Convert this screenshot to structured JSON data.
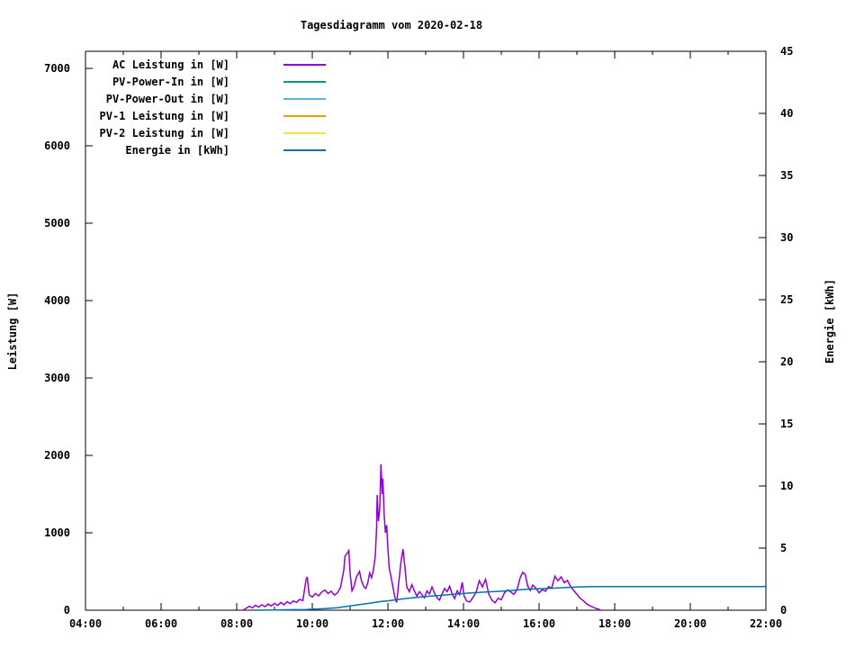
{
  "chart_data": {
    "type": "line",
    "title": "Tagesdiagramm vom 2020-02-18",
    "x_axis": {
      "range_minutes": [
        240,
        1320
      ],
      "major_ticks": [
        {
          "t": 240,
          "label": "04:00"
        },
        {
          "t": 360,
          "label": "06:00"
        },
        {
          "t": 480,
          "label": "08:00"
        },
        {
          "t": 600,
          "label": "10:00"
        },
        {
          "t": 720,
          "label": "12:00"
        },
        {
          "t": 840,
          "label": "14:00"
        },
        {
          "t": 960,
          "label": "16:00"
        },
        {
          "t": 1080,
          "label": "18:00"
        },
        {
          "t": 1200,
          "label": "20:00"
        },
        {
          "t": 1320,
          "label": "22:00"
        }
      ],
      "minor_tick_minutes": [
        300,
        420,
        540,
        660,
        780,
        900,
        1020,
        1140,
        1260
      ]
    },
    "y_left": {
      "label": "Leistung [W]",
      "range": [
        0,
        7221
      ],
      "ticks": [
        0,
        1000,
        2000,
        3000,
        4000,
        5000,
        6000,
        7000
      ]
    },
    "y_right": {
      "label": "Energie [kWh]",
      "range": [
        0,
        45
      ],
      "ticks": [
        0,
        5,
        10,
        15,
        20,
        25,
        30,
        35,
        40,
        45
      ]
    },
    "legend_position": "top-left-inside",
    "grid": false,
    "legend": [
      {
        "label": "AC Leistung in [W]",
        "color": "#9400d3",
        "series_key": "ac_leistung"
      },
      {
        "label": "PV-Power-In in [W]",
        "color": "#009e73",
        "series_key": "pv_power_in"
      },
      {
        "label": "PV-Power-Out in [W]",
        "color": "#56b4e9",
        "series_key": "pv_power_out"
      },
      {
        "label": "PV-1 Leistung in [W]",
        "color": "#e69f00",
        "series_key": "pv1_leistung"
      },
      {
        "label": "PV-2 Leistung in [W]",
        "color": "#f0e442",
        "series_key": "pv2_leistung"
      },
      {
        "label": "Energie in [kWh]",
        "color": "#0072b2",
        "series_key": "energie"
      }
    ],
    "series": {
      "ac_leistung": {
        "axis": "left",
        "color": "#9400d3",
        "peak_watts": 1886,
        "peak_time": "11:49",
        "points": [
          [
            490,
            0
          ],
          [
            495,
            25
          ],
          [
            500,
            50
          ],
          [
            505,
            30
          ],
          [
            510,
            65
          ],
          [
            515,
            40
          ],
          [
            520,
            70
          ],
          [
            525,
            45
          ],
          [
            530,
            80
          ],
          [
            535,
            55
          ],
          [
            540,
            90
          ],
          [
            545,
            60
          ],
          [
            550,
            100
          ],
          [
            555,
            70
          ],
          [
            560,
            110
          ],
          [
            565,
            85
          ],
          [
            570,
            120
          ],
          [
            575,
            100
          ],
          [
            580,
            140
          ],
          [
            585,
            125
          ],
          [
            590,
            390
          ],
          [
            592,
            430
          ],
          [
            595,
            200
          ],
          [
            600,
            170
          ],
          [
            605,
            215
          ],
          [
            610,
            185
          ],
          [
            615,
            235
          ],
          [
            620,
            260
          ],
          [
            625,
            215
          ],
          [
            630,
            245
          ],
          [
            635,
            195
          ],
          [
            640,
            225
          ],
          [
            645,
            300
          ],
          [
            650,
            520
          ],
          [
            652,
            700
          ],
          [
            655,
            730
          ],
          [
            658,
            770
          ],
          [
            660,
            480
          ],
          [
            663,
            250
          ],
          [
            666,
            300
          ],
          [
            670,
            430
          ],
          [
            675,
            500
          ],
          [
            678,
            380
          ],
          [
            682,
            300
          ],
          [
            685,
            280
          ],
          [
            688,
            350
          ],
          [
            691,
            480
          ],
          [
            694,
            420
          ],
          [
            697,
            520
          ],
          [
            700,
            700
          ],
          [
            702,
            1050
          ],
          [
            703,
            1490
          ],
          [
            705,
            1150
          ],
          [
            707,
            1300
          ],
          [
            709,
            1886
          ],
          [
            711,
            1500
          ],
          [
            712,
            1700
          ],
          [
            714,
            1250
          ],
          [
            716,
            1000
          ],
          [
            718,
            1100
          ],
          [
            720,
            800
          ],
          [
            722,
            550
          ],
          [
            725,
            430
          ],
          [
            728,
            300
          ],
          [
            731,
            170
          ],
          [
            734,
            100
          ],
          [
            738,
            420
          ],
          [
            741,
            640
          ],
          [
            744,
            790
          ],
          [
            747,
            560
          ],
          [
            750,
            300
          ],
          [
            754,
            240
          ],
          [
            758,
            330
          ],
          [
            762,
            250
          ],
          [
            766,
            180
          ],
          [
            770,
            240
          ],
          [
            774,
            200
          ],
          [
            778,
            160
          ],
          [
            782,
            250
          ],
          [
            786,
            210
          ],
          [
            790,
            300
          ],
          [
            794,
            220
          ],
          [
            798,
            160
          ],
          [
            802,
            130
          ],
          [
            806,
            210
          ],
          [
            810,
            280
          ],
          [
            814,
            240
          ],
          [
            818,
            310
          ],
          [
            822,
            210
          ],
          [
            826,
            150
          ],
          [
            830,
            250
          ],
          [
            834,
            200
          ],
          [
            838,
            360
          ],
          [
            841,
            180
          ],
          [
            845,
            120
          ],
          [
            850,
            105
          ],
          [
            855,
            165
          ],
          [
            860,
            230
          ],
          [
            865,
            380
          ],
          [
            870,
            300
          ],
          [
            875,
            400
          ],
          [
            880,
            210
          ],
          [
            885,
            130
          ],
          [
            890,
            95
          ],
          [
            895,
            155
          ],
          [
            900,
            135
          ],
          [
            905,
            225
          ],
          [
            910,
            260
          ],
          [
            915,
            235
          ],
          [
            920,
            205
          ],
          [
            925,
            265
          ],
          [
            930,
            420
          ],
          [
            934,
            490
          ],
          [
            938,
            460
          ],
          [
            942,
            310
          ],
          [
            946,
            255
          ],
          [
            950,
            325
          ],
          [
            955,
            285
          ],
          [
            960,
            225
          ],
          [
            965,
            265
          ],
          [
            970,
            245
          ],
          [
            975,
            305
          ],
          [
            980,
            285
          ],
          [
            985,
            440
          ],
          [
            990,
            380
          ],
          [
            995,
            430
          ],
          [
            1000,
            355
          ],
          [
            1005,
            385
          ],
          [
            1010,
            305
          ],
          [
            1015,
            255
          ],
          [
            1020,
            205
          ],
          [
            1025,
            155
          ],
          [
            1030,
            125
          ],
          [
            1035,
            85
          ],
          [
            1040,
            60
          ],
          [
            1045,
            40
          ],
          [
            1050,
            25
          ],
          [
            1055,
            10
          ],
          [
            1058,
            0
          ]
        ]
      },
      "pv_power_in": {
        "axis": "left",
        "color": "#009e73",
        "points": []
      },
      "pv_power_out": {
        "axis": "left",
        "color": "#56b4e9",
        "points": []
      },
      "pv1_leistung": {
        "axis": "left",
        "color": "#e69f00",
        "points": []
      },
      "pv2_leistung": {
        "axis": "left",
        "color": "#f0e442",
        "points": []
      },
      "energie": {
        "axis": "right",
        "color": "#0072b2",
        "final_kwh": 1.9,
        "points": [
          [
            510,
            0
          ],
          [
            540,
            0.02
          ],
          [
            570,
            0.04
          ],
          [
            590,
            0.06
          ],
          [
            600,
            0.08
          ],
          [
            620,
            0.12
          ],
          [
            640,
            0.2
          ],
          [
            660,
            0.35
          ],
          [
            675,
            0.45
          ],
          [
            690,
            0.55
          ],
          [
            700,
            0.63
          ],
          [
            710,
            0.7
          ],
          [
            720,
            0.75
          ],
          [
            735,
            0.85
          ],
          [
            750,
            0.95
          ],
          [
            765,
            1.02
          ],
          [
            780,
            1.1
          ],
          [
            800,
            1.18
          ],
          [
            820,
            1.27
          ],
          [
            840,
            1.35
          ],
          [
            860,
            1.42
          ],
          [
            880,
            1.48
          ],
          [
            900,
            1.53
          ],
          [
            920,
            1.6
          ],
          [
            940,
            1.68
          ],
          [
            960,
            1.72
          ],
          [
            980,
            1.77
          ],
          [
            1000,
            1.82
          ],
          [
            1020,
            1.86
          ],
          [
            1040,
            1.89
          ],
          [
            1050,
            1.9
          ],
          [
            1320,
            1.9
          ]
        ]
      }
    }
  }
}
